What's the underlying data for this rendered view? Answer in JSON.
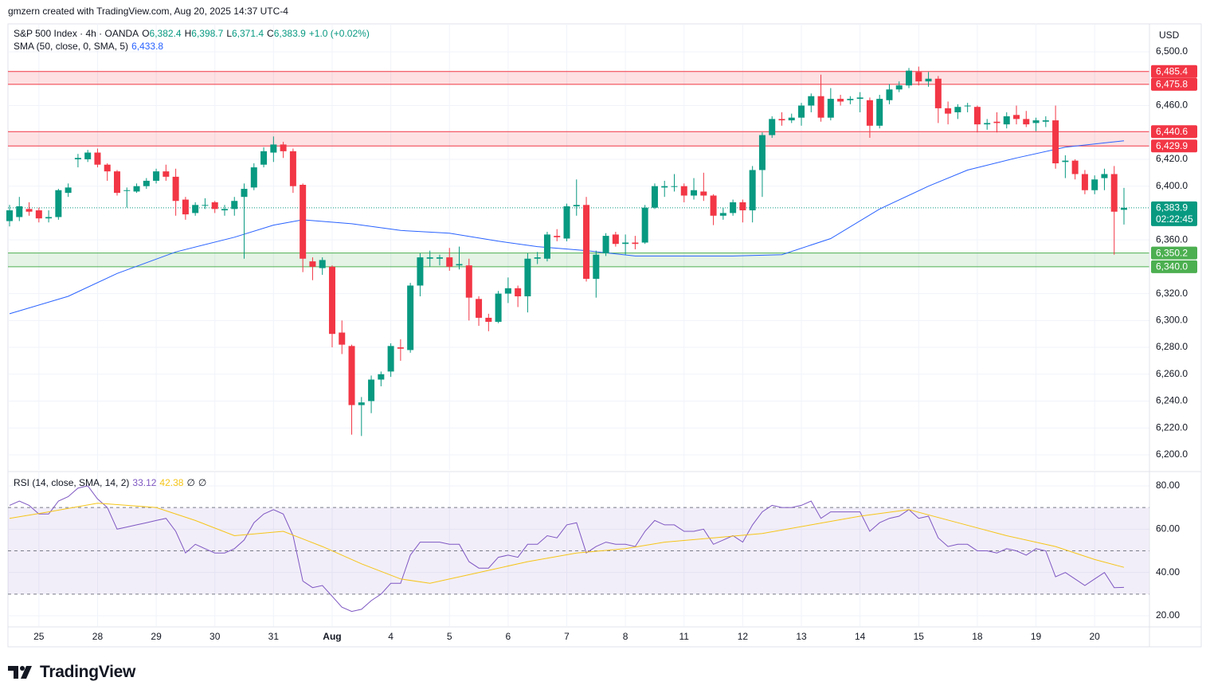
{
  "header": "gmzern created with TradingView.com, Aug 20, 2025 14:37 UTC-4",
  "footer": "TradingView",
  "chart_data": [
    {
      "type": "candlestick",
      "currency": "USD",
      "legend": {
        "symbol": "S&P 500 Index · 4h · OANDA",
        "ohlc": [
          {
            "key": "O",
            "label": "6,382.4"
          },
          {
            "key": "H",
            "label": "6,398.7"
          },
          {
            "key": "L",
            "label": "6,371.4"
          },
          {
            "key": "C",
            "label": "6,383.9"
          }
        ],
        "change": "+1.0 (+0.02%)"
      },
      "categories": [
        null,
        null,
        null,
        "25",
        null,
        null,
        null,
        null,
        null,
        "28",
        null,
        null,
        null,
        null,
        null,
        "29",
        null,
        null,
        null,
        null,
        null,
        "30",
        null,
        null,
        null,
        null,
        null,
        "31",
        null,
        null,
        null,
        null,
        null,
        "Aug",
        null,
        null,
        null,
        null,
        null,
        "4",
        null,
        null,
        null,
        null,
        null,
        "5",
        null,
        null,
        null,
        null,
        null,
        "6",
        null,
        null,
        null,
        null,
        null,
        "7",
        null,
        null,
        null,
        null,
        null,
        "8",
        null,
        null,
        null,
        null,
        null,
        "11",
        null,
        null,
        null,
        null,
        null,
        "12",
        null,
        null,
        null,
        null,
        null,
        "13",
        null,
        null,
        null,
        null,
        null,
        "14",
        null,
        null,
        null,
        null,
        null,
        "15",
        null,
        null,
        null,
        null,
        null,
        "18",
        null,
        null,
        null,
        null,
        null,
        "19",
        null,
        null,
        null,
        null,
        null,
        "20",
        null,
        null,
        null
      ],
      "open": [
        6374,
        6377,
        6383,
        6382,
        6376,
        6377,
        6395,
        6420,
        6420,
        6425,
        6416,
        6411,
        6397,
        6396,
        6400,
        6404,
        6411,
        6407,
        6390,
        6380,
        6386,
        6388,
        6382,
        6383,
        6392,
        6399,
        6416,
        6425,
        6431,
        6426,
        6401,
        6344,
        6339,
        6340,
        6291,
        6281,
        6237,
        6240,
        6256,
        6262,
        6280,
        6278,
        6326,
        6346,
        6346,
        6347,
        6341,
        6341,
        6316,
        6302,
        6299,
        6320,
        6324,
        6318,
        6346,
        6346,
        6363,
        6361,
        6385,
        6386,
        6331,
        6350,
        6364,
        6357,
        6358,
        6358,
        6384,
        6399,
        6400,
        6400,
        6393,
        6396,
        6393,
        6378,
        6380,
        6388,
        6382,
        6412,
        6438,
        6450,
        6449,
        6451,
        6460,
        6467,
        6451,
        6465,
        6464,
        6465,
        6464,
        6445,
        6464,
        6472,
        6475,
        6485,
        6478,
        6480,
        6458,
        6455,
        6460,
        6459,
        6446,
        6448,
        6446,
        6453,
        6450,
        6447,
        6448,
        6449,
        6418,
        6419,
        6409,
        6397,
        6406,
        6409,
        6382.4
      ],
      "high": [
        6386,
        6392,
        6388,
        6384,
        6382,
        6398,
        6402,
        6424,
        6427,
        6428,
        6417,
        6412,
        6399,
        6402,
        6406,
        6413,
        6416,
        6413,
        6392,
        6388,
        6391,
        6389,
        6386,
        6392,
        6402,
        6417,
        6429,
        6437,
        6433,
        6428,
        6402,
        6347,
        6347,
        6341,
        6300,
        6282,
        6243,
        6259,
        6262,
        6283,
        6286,
        6328,
        6350,
        6352,
        6349,
        6354,
        6355,
        6346,
        6318,
        6305,
        6322,
        6332,
        6326,
        6350,
        6351,
        6366,
        6368,
        6387,
        6405,
        6392,
        6352,
        6365,
        6366,
        6364,
        6363,
        6386,
        6402,
        6404,
        6409,
        6402,
        6406,
        6410,
        6394,
        6384,
        6390,
        6390,
        6415,
        6440,
        6452,
        6455,
        6454,
        6462,
        6469,
        6483,
        6473,
        6468,
        6467,
        6470,
        6466,
        6468,
        6476,
        6478,
        6488,
        6489,
        6485,
        6482,
        6463,
        6461,
        6462,
        6460,
        6450,
        6455,
        6455,
        6460,
        6456,
        6451,
        6452,
        6460,
        6423,
        6420,
        6412,
        6408,
        6413,
        6415,
        6398.7
      ],
      "low": [
        6370,
        6374,
        6378,
        6373,
        6373,
        6375,
        6392,
        6414,
        6418,
        6414,
        6404,
        6393,
        6384,
        6395,
        6398,
        6402,
        6404,
        6378,
        6375,
        6378,
        6383,
        6380,
        6378,
        6378,
        6346,
        6397,
        6414,
        6418,
        6421,
        6395,
        6336,
        6330,
        6334,
        6280,
        6275,
        6215,
        6214,
        6231,
        6251,
        6258,
        6270,
        6276,
        6318,
        6340,
        6341,
        6337,
        6338,
        6300,
        6296,
        6292,
        6298,
        6313,
        6310,
        6306,
        6342,
        6344,
        6359,
        6359,
        6378,
        6329,
        6317,
        6348,
        6355,
        6349,
        6353,
        6357,
        6383,
        6392,
        6396,
        6388,
        6390,
        6389,
        6371,
        6375,
        6378,
        6373,
        6373,
        6392,
        6436,
        6445,
        6447,
        6445,
        6455,
        6448,
        6449,
        6460,
        6461,
        6455,
        6436,
        6443,
        6461,
        6470,
        6473,
        6475,
        6474,
        6447,
        6446,
        6450,
        6455,
        6440,
        6442,
        6440,
        6443,
        6446,
        6444,
        6441,
        6444,
        6413,
        6406,
        6405,
        6394,
        6394,
        6397,
        6349,
        6371.4
      ],
      "close": [
        6382,
        6385,
        6381,
        6376,
        6377,
        6397,
        6399,
        6421,
        6425,
        6416,
        6411,
        6395,
        6397,
        6400,
        6404,
        6411,
        6407,
        6389,
        6379,
        6386,
        6386,
        6383,
        6383,
        6389,
        6398,
        6414,
        6426,
        6431,
        6426,
        6400,
        6346,
        6340,
        6345,
        6290,
        6282,
        6237,
        6239,
        6256,
        6260,
        6281,
        6279,
        6326,
        6347,
        6347,
        6347,
        6340,
        6342,
        6317,
        6302,
        6299,
        6320,
        6324,
        6318,
        6346,
        6347,
        6364,
        6362,
        6385,
        6386,
        6331,
        6349,
        6363,
        6357,
        6358,
        6357,
        6384,
        6400,
        6400,
        6400,
        6393,
        6397,
        6393,
        6378,
        6380,
        6388,
        6382,
        6412,
        6438,
        6450,
        6449,
        6451,
        6460,
        6467,
        6451,
        6465,
        6463,
        6465,
        6466,
        6445,
        6465,
        6472,
        6475,
        6486,
        6478,
        6480,
        6458,
        6454,
        6459,
        6460,
        6446,
        6447,
        6447,
        6452,
        6450,
        6446,
        6449,
        6449,
        6417,
        6419,
        6409,
        6397,
        6405,
        6409,
        6381,
        6383.9
      ],
      "up_color": "#089981",
      "down_color": "#f23645",
      "ylim": [
        6188.7,
        6520.8
      ],
      "yticks": [
        {
          "value": 6200,
          "label": "6,200.0"
        },
        {
          "value": 6220,
          "label": "6,220.0"
        },
        {
          "value": 6240,
          "label": "6,240.0"
        },
        {
          "value": 6260,
          "label": "6,260.0"
        },
        {
          "value": 6280,
          "label": "6,280.0"
        },
        {
          "value": 6300,
          "label": "6,300.0"
        },
        {
          "value": 6320,
          "label": "6,320.0"
        },
        {
          "value": 6360,
          "label": "6,360.0"
        },
        {
          "value": 6400,
          "label": "6,400.0"
        },
        {
          "value": 6420,
          "label": "6,420.0"
        },
        {
          "value": 6460,
          "label": "6,460.0"
        },
        {
          "value": 6500,
          "label": "6,500.0"
        }
      ],
      "grid": true,
      "sma": {
        "name": "SMA (50, close, 0, SMA, 5)",
        "value_label": "6,433.8",
        "color": "#2962ff",
        "x": [
          0,
          6,
          11,
          17,
          23,
          27,
          30,
          35,
          40,
          45,
          50,
          54,
          59,
          64,
          69,
          74,
          79,
          84,
          89,
          94,
          98,
          103,
          108,
          114
        ],
        "values": [
          6305,
          6318,
          6335,
          6351,
          6362,
          6371,
          6375,
          6372,
          6367,
          6365,
          6359,
          6355,
          6352,
          6348,
          6348,
          6348,
          6349,
          6361,
          6383,
          6400,
          6412,
          6421,
          6429,
          6433.8
        ]
      },
      "zones": [
        {
          "low": 6475.8,
          "high": 6485.4,
          "low_label": "6,475.8",
          "high_label": "6,485.4",
          "color": "#f23645"
        },
        {
          "low": 6429.9,
          "high": 6440.6,
          "low_label": "6,429.9",
          "high_label": "6,440.6",
          "color": "#f23645"
        },
        {
          "low": 6340.0,
          "high": 6350.2,
          "low_label": "6,340.0",
          "high_label": "6,350.2",
          "color": "#4caf50"
        }
      ],
      "last_price": {
        "value": 6383.9,
        "label": "6,383.9",
        "countdown": "02:22:45",
        "color": "#089981"
      }
    },
    {
      "type": "line",
      "title": "RSI (14, close, SMA, 14, 2)",
      "series": [
        {
          "color": "#7e57c2",
          "value_label": "33.12",
          "values": [
            71,
            73,
            71,
            67,
            67,
            73,
            75,
            79,
            80,
            74,
            70,
            60,
            61,
            62,
            63,
            64,
            65,
            59,
            49,
            53,
            51,
            49,
            49,
            51,
            55,
            63,
            67,
            69,
            67,
            57,
            36,
            33,
            34,
            29,
            24,
            22,
            23,
            27,
            30,
            35,
            35,
            48,
            54,
            54,
            54,
            53,
            53,
            45,
            42,
            42,
            47,
            48,
            47,
            53,
            53,
            57,
            56,
            62,
            63,
            49,
            52,
            54,
            53,
            53,
            52,
            59,
            64,
            62,
            62,
            59,
            59,
            60,
            53,
            55,
            57,
            54,
            62,
            68,
            71,
            70,
            70,
            71,
            73,
            65,
            68,
            68,
            68,
            68,
            59,
            63,
            65,
            66,
            69,
            65,
            66,
            56,
            52,
            53,
            53,
            50,
            50,
            49,
            51,
            50,
            48,
            51,
            50,
            38,
            40,
            37,
            34,
            37,
            40,
            33,
            33.12
          ]
        },
        {
          "color": "#f5c518",
          "value_label": "42.38",
          "x": [
            0,
            4,
            9,
            15,
            19,
            23,
            28,
            32,
            36,
            40,
            43,
            48,
            53,
            58,
            63,
            67,
            72,
            77,
            82,
            87,
            92,
            97,
            102,
            107,
            111,
            114
          ],
          "values": [
            65,
            68,
            72,
            70,
            64,
            57,
            59,
            52,
            44,
            37,
            35,
            40,
            45,
            49,
            51,
            54,
            56,
            58,
            62,
            66,
            69,
            63,
            57,
            52,
            46,
            42.38
          ]
        }
      ],
      "extra_labels": [
        "∅",
        "∅"
      ],
      "levels": [
        70,
        50,
        30
      ],
      "band_color": "#7e57c2",
      "ylim": [
        15.6,
        85.5
      ],
      "yticks": [
        {
          "value": 20,
          "label": "20.00"
        },
        {
          "value": 40,
          "label": "40.00"
        },
        {
          "value": 60,
          "label": "60.00"
        },
        {
          "value": 80,
          "label": "80.00"
        }
      ],
      "grid": true
    }
  ]
}
